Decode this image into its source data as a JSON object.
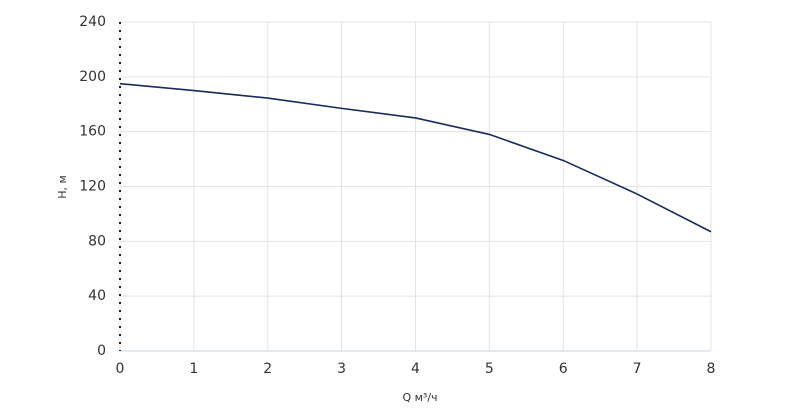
{
  "chart_data": {
    "type": "line",
    "x_label": "Q м³/ч",
    "y_label": "H, м",
    "x": [
      0,
      1,
      2,
      3,
      4,
      4.5,
      5,
      6,
      7,
      8
    ],
    "series": [
      {
        "name": "H",
        "color": "#1a2a5e",
        "values": [
          195,
          190,
          184.5,
          177,
          170,
          164,
          158,
          139,
          114.5,
          87
        ]
      }
    ],
    "xlim": [
      0,
      8
    ],
    "xticks": [
      0,
      1,
      2,
      3,
      4,
      5,
      6,
      7,
      8
    ],
    "ylim": [
      0,
      240
    ],
    "yticks": [
      0,
      40,
      80,
      120,
      160,
      200,
      240
    ],
    "grid": true
  }
}
